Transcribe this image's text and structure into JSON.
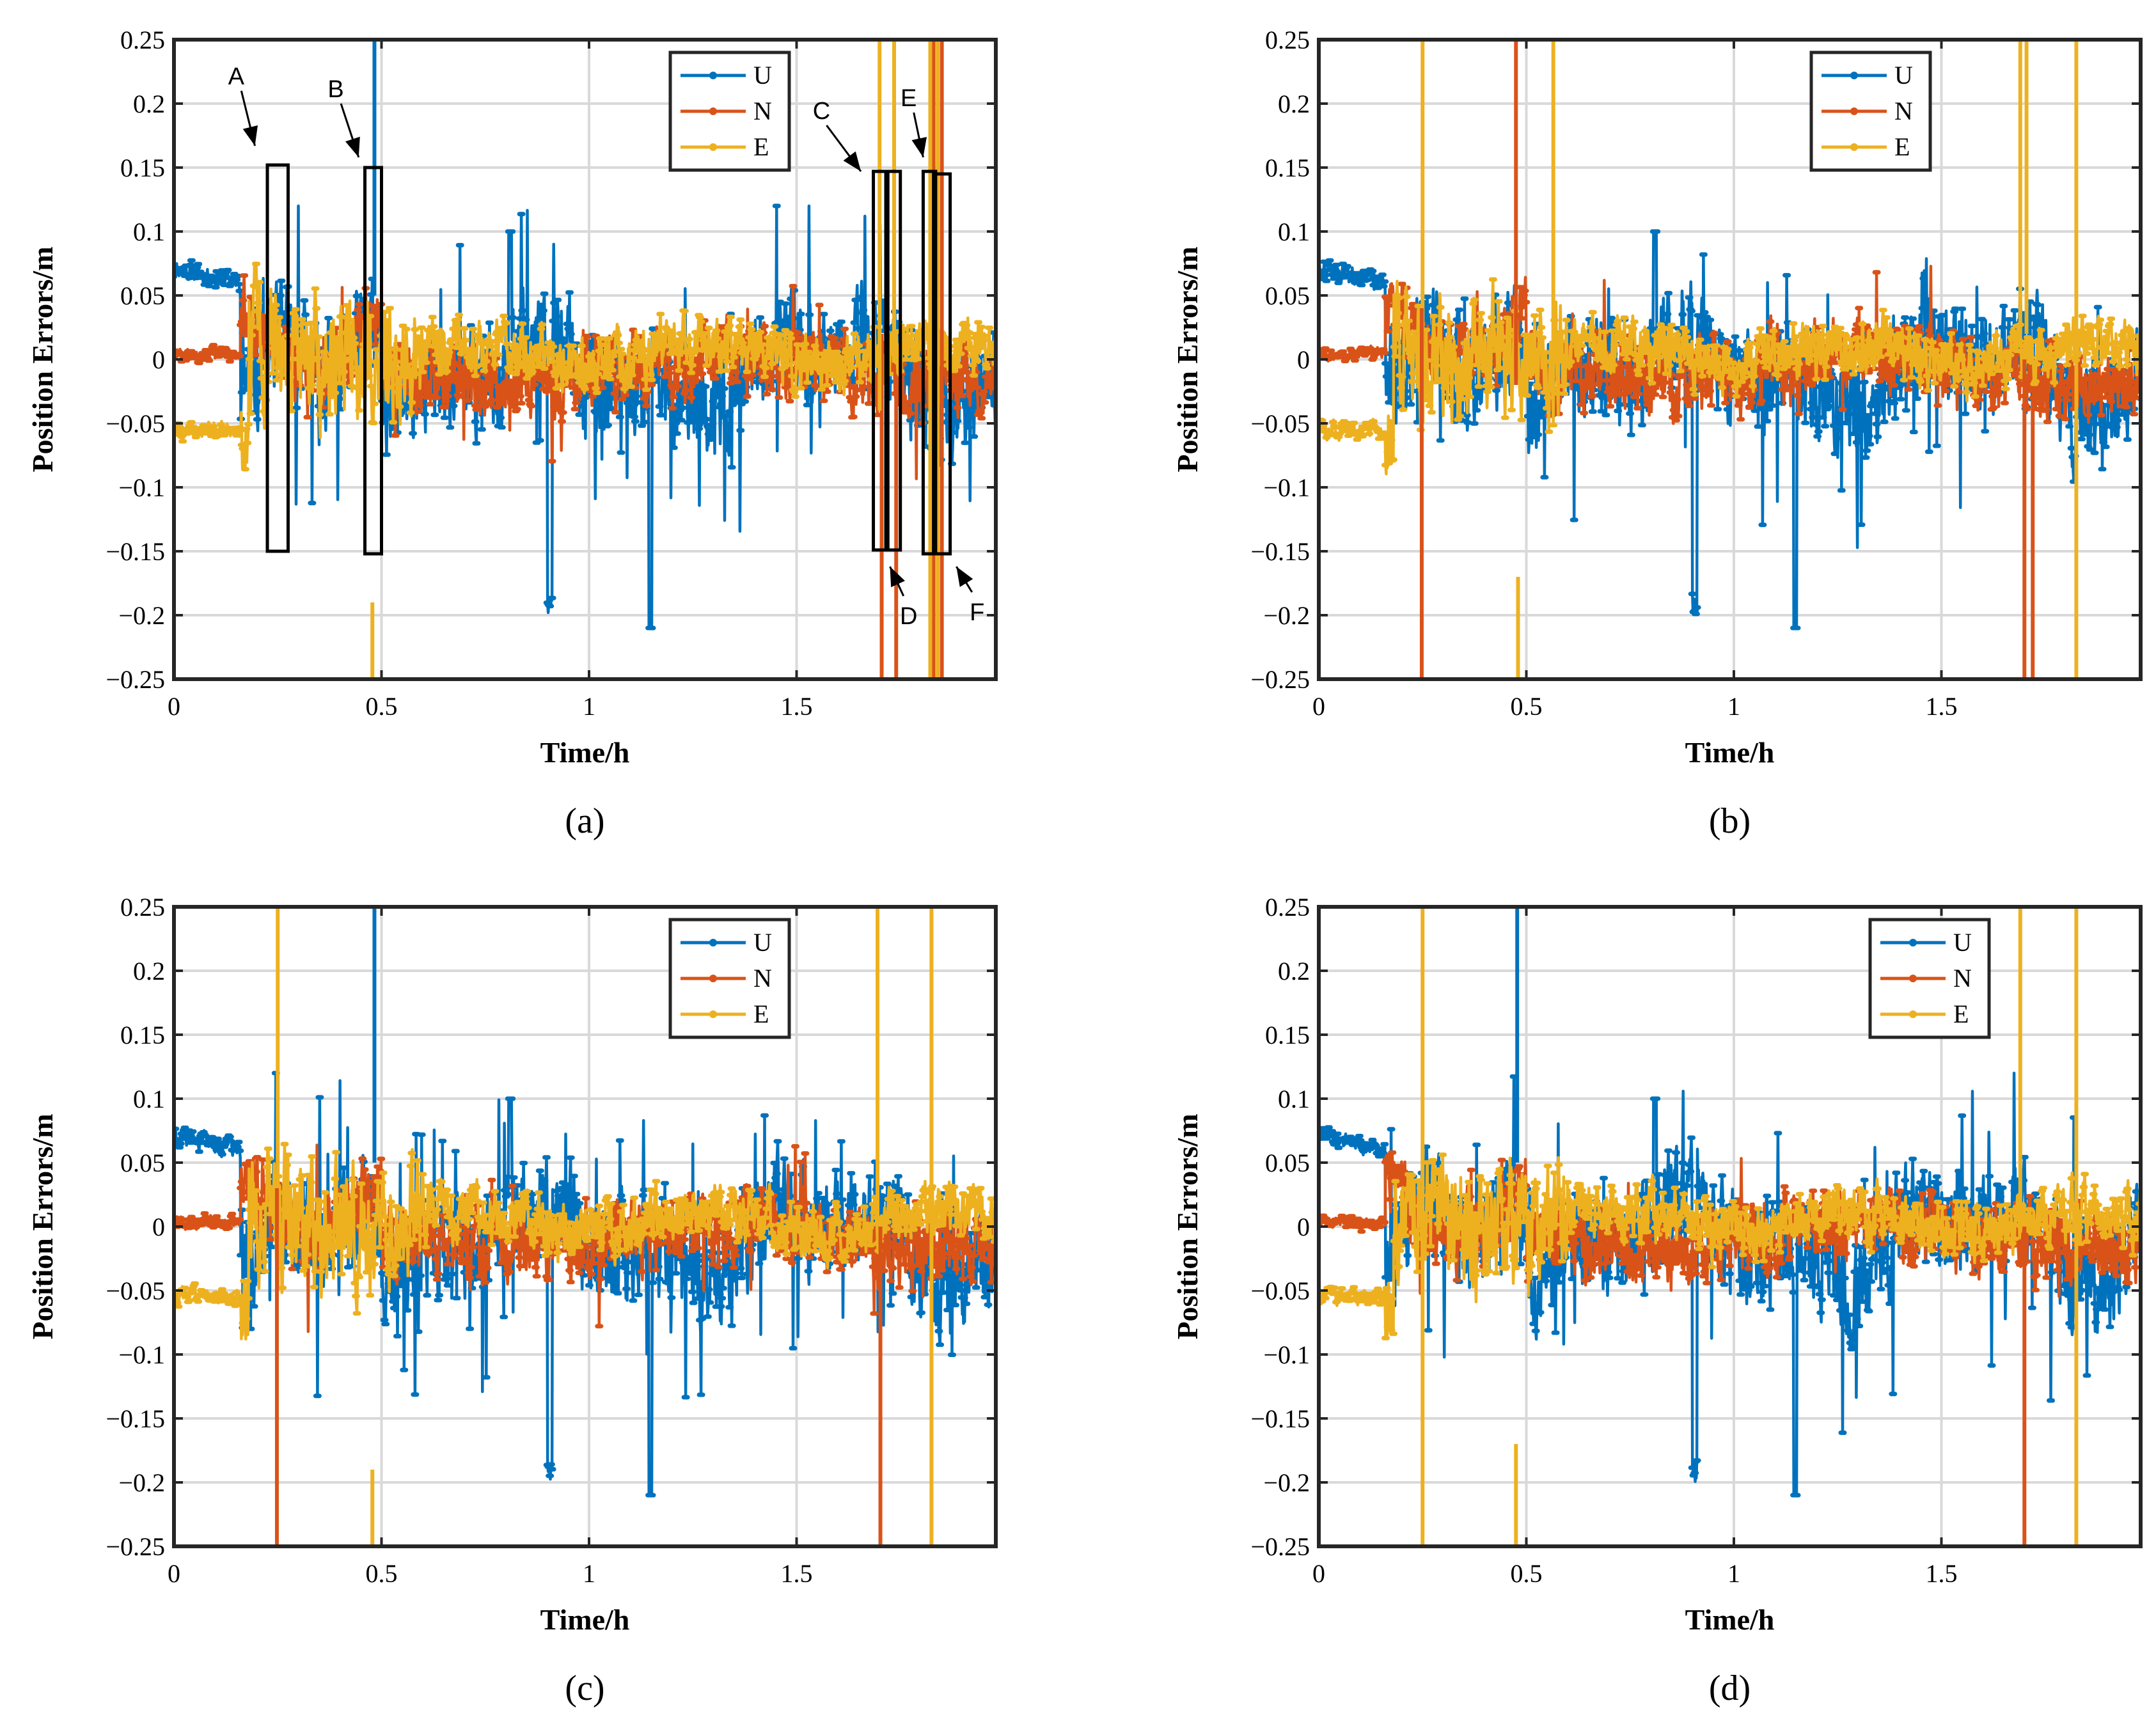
{
  "colors": {
    "U": "#0072BD",
    "N": "#D95319",
    "E": "#EDB120"
  },
  "chart_data": [
    {
      "type": "line",
      "panel": "a",
      "panel_label": "(a)",
      "xlabel": "Time/h",
      "ylabel": "Position Errors/m",
      "xlim": [
        0,
        1.98
      ],
      "ylim": [
        -0.25,
        0.25
      ],
      "xticks": [
        0,
        0.5,
        1,
        1.5
      ],
      "xtick_labels": [
        "0",
        "0.5",
        "1",
        "1.5"
      ],
      "yticks": [
        0.25,
        0.2,
        0.15,
        0.1,
        0.05,
        0,
        -0.05,
        -0.1,
        -0.15,
        -0.2,
        -0.25
      ],
      "ytick_labels": [
        "0.25",
        "0.2",
        "0.15",
        "0.1",
        "0.05",
        "0",
        "−0.05",
        "−0.1",
        "−0.15",
        "−0.2",
        "−0.25"
      ],
      "grid": true,
      "legend": {
        "position": "top-right",
        "entries": [
          "U",
          "N",
          "E"
        ]
      },
      "series_names": [
        "U",
        "N",
        "E"
      ],
      "spikes": [
        {
          "series": "U",
          "x": 0.483,
          "low": 0.05,
          "high": 0.25
        },
        {
          "series": "E",
          "x": 0.478,
          "low": -0.25,
          "high": -0.19
        },
        {
          "series": "N",
          "x": 1.705,
          "low": -0.25,
          "high": 0.02
        },
        {
          "series": "N",
          "x": 1.74,
          "low": -0.25,
          "high": -0.02
        },
        {
          "series": "E",
          "x": 1.7,
          "low": -0.04,
          "high": 0.25
        },
        {
          "series": "E",
          "x": 1.735,
          "low": 0.0,
          "high": 0.25
        },
        {
          "series": "N",
          "x": 1.83,
          "low": -0.25,
          "high": 0.25
        },
        {
          "series": "N",
          "x": 1.85,
          "low": -0.25,
          "high": 0.25
        },
        {
          "series": "E",
          "x": 1.822,
          "low": -0.25,
          "high": 0.25
        },
        {
          "series": "E",
          "x": 1.84,
          "low": -0.25,
          "high": 0.25
        }
      ],
      "boxes": [
        {
          "x0": 0.225,
          "x1": 0.275,
          "y0": -0.15,
          "y1": 0.152
        },
        {
          "x0": 0.46,
          "x1": 0.5,
          "y0": -0.152,
          "y1": 0.15
        },
        {
          "x0": 1.685,
          "x1": 1.72,
          "y0": -0.149,
          "y1": 0.147
        },
        {
          "x0": 1.715,
          "x1": 1.75,
          "y0": -0.149,
          "y1": 0.147
        },
        {
          "x0": 1.805,
          "x1": 1.835,
          "y0": -0.152,
          "y1": 0.147
        },
        {
          "x0": 1.83,
          "x1": 1.87,
          "y0": -0.152,
          "y1": 0.145
        }
      ],
      "annotations": [
        {
          "text": "A",
          "tx": 0.15,
          "ty": 0.215,
          "ax": 0.195,
          "ay": 0.167
        },
        {
          "text": "B",
          "tx": 0.39,
          "ty": 0.205,
          "ax": 0.445,
          "ay": 0.158
        },
        {
          "text": "C",
          "tx": 1.56,
          "ty": 0.188,
          "ax": 1.655,
          "ay": 0.147
        },
        {
          "text": "D",
          "tx": 1.77,
          "ty": -0.207,
          "ax": 1.725,
          "ay": -0.162
        },
        {
          "text": "E",
          "tx": 1.77,
          "ty": 0.198,
          "ax": 1.805,
          "ay": 0.158
        },
        {
          "text": "F",
          "tx": 1.935,
          "ty": -0.204,
          "ax": 1.885,
          "ay": -0.162
        }
      ]
    },
    {
      "type": "line",
      "panel": "b",
      "panel_label": "(b)",
      "xlabel": "Time/h",
      "ylabel": "Position Errors/m",
      "xlim": [
        0,
        1.98
      ],
      "ylim": [
        -0.25,
        0.25
      ],
      "xticks": [
        0,
        0.5,
        1,
        1.5
      ],
      "xtick_labels": [
        "0",
        "0.5",
        "1",
        "1.5"
      ],
      "yticks": [
        0.25,
        0.2,
        0.15,
        0.1,
        0.05,
        0,
        -0.05,
        -0.1,
        -0.15,
        -0.2,
        -0.25
      ],
      "ytick_labels": [
        "0.25",
        "0.2",
        "0.15",
        "0.1",
        "0.05",
        "0",
        "−0.05",
        "−0.1",
        "−0.15",
        "−0.2",
        "−0.25"
      ],
      "grid": true,
      "legend": {
        "position": "top-right",
        "entries": [
          "U",
          "N",
          "E"
        ]
      },
      "series_names": [
        "U",
        "N",
        "E"
      ],
      "spikes": [
        {
          "series": "E",
          "x": 0.25,
          "low": -0.05,
          "high": 0.25
        },
        {
          "series": "N",
          "x": 0.248,
          "low": -0.25,
          "high": 0.04
        },
        {
          "series": "N",
          "x": 0.475,
          "low": -0.02,
          "high": 0.25
        },
        {
          "series": "E",
          "x": 0.48,
          "low": -0.25,
          "high": -0.17
        },
        {
          "series": "E",
          "x": 0.565,
          "low": 0.0,
          "high": 0.25
        },
        {
          "series": "N",
          "x": 1.7,
          "low": -0.25,
          "high": 0.0
        },
        {
          "series": "N",
          "x": 1.72,
          "low": -0.25,
          "high": -0.03
        },
        {
          "series": "E",
          "x": 1.69,
          "low": 0.02,
          "high": 0.25
        },
        {
          "series": "E",
          "x": 1.705,
          "low": 0.02,
          "high": 0.25
        },
        {
          "series": "E",
          "x": 1.825,
          "low": -0.25,
          "high": 0.25
        }
      ],
      "boxes": [],
      "annotations": []
    },
    {
      "type": "line",
      "panel": "c",
      "panel_label": "(c)",
      "xlabel": "Time/h",
      "ylabel": "Position Errors/m",
      "xlim": [
        0,
        1.98
      ],
      "ylim": [
        -0.25,
        0.25
      ],
      "xticks": [
        0,
        0.5,
        1,
        1.5
      ],
      "xtick_labels": [
        "0",
        "0.5",
        "1",
        "1.5"
      ],
      "yticks": [
        0.25,
        0.2,
        0.15,
        0.1,
        0.05,
        0,
        -0.05,
        -0.1,
        -0.15,
        -0.2,
        -0.25
      ],
      "ytick_labels": [
        "0.25",
        "0.2",
        "0.15",
        "0.1",
        "0.05",
        "0",
        "−0.05",
        "−0.1",
        "−0.15",
        "−0.2",
        "−0.25"
      ],
      "grid": true,
      "legend": {
        "position": "top-right",
        "entries": [
          "U",
          "N",
          "E"
        ]
      },
      "series_names": [
        "U",
        "N",
        "E"
      ],
      "spikes": [
        {
          "series": "E",
          "x": 0.25,
          "low": -0.05,
          "high": 0.25
        },
        {
          "series": "N",
          "x": 0.248,
          "low": -0.25,
          "high": 0.03
        },
        {
          "series": "U",
          "x": 0.483,
          "low": 0.05,
          "high": 0.25
        },
        {
          "series": "E",
          "x": 0.478,
          "low": -0.25,
          "high": -0.19
        },
        {
          "series": "N",
          "x": 1.702,
          "low": -0.25,
          "high": 0.0
        },
        {
          "series": "E",
          "x": 1.695,
          "low": 0.0,
          "high": 0.25
        },
        {
          "series": "E",
          "x": 1.825,
          "low": -0.25,
          "high": 0.25
        }
      ],
      "boxes": [],
      "annotations": []
    },
    {
      "type": "line",
      "panel": "d",
      "panel_label": "(d)",
      "xlabel": "Time/h",
      "ylabel": "Position Errors/m",
      "xlim": [
        0,
        1.98
      ],
      "ylim": [
        -0.25,
        0.25
      ],
      "xticks": [
        0,
        0.5,
        1,
        1.5
      ],
      "xtick_labels": [
        "0",
        "0.5",
        "1",
        "1.5"
      ],
      "yticks": [
        0.25,
        0.2,
        0.15,
        0.1,
        0.05,
        0,
        -0.05,
        -0.1,
        -0.15,
        -0.2,
        -0.25
      ],
      "ytick_labels": [
        "0.25",
        "0.2",
        "0.15",
        "0.1",
        "0.05",
        "0",
        "−0.05",
        "−0.1",
        "−0.15",
        "−0.2",
        "−0.25"
      ],
      "grid": true,
      "legend": {
        "position": "top-right",
        "entries": [
          "U",
          "N",
          "E"
        ]
      },
      "series_names": [
        "U",
        "N",
        "E"
      ],
      "spikes": [
        {
          "series": "E",
          "x": 0.25,
          "low": -0.25,
          "high": 0.25
        },
        {
          "series": "U",
          "x": 0.478,
          "low": 0.05,
          "high": 0.25
        },
        {
          "series": "E",
          "x": 0.475,
          "low": -0.25,
          "high": -0.17
        },
        {
          "series": "N",
          "x": 1.7,
          "low": -0.25,
          "high": 0.0
        },
        {
          "series": "E",
          "x": 1.69,
          "low": 0.0,
          "high": 0.25
        },
        {
          "series": "E",
          "x": 1.825,
          "low": -0.25,
          "high": 0.25
        }
      ],
      "boxes": [],
      "annotations": []
    }
  ]
}
